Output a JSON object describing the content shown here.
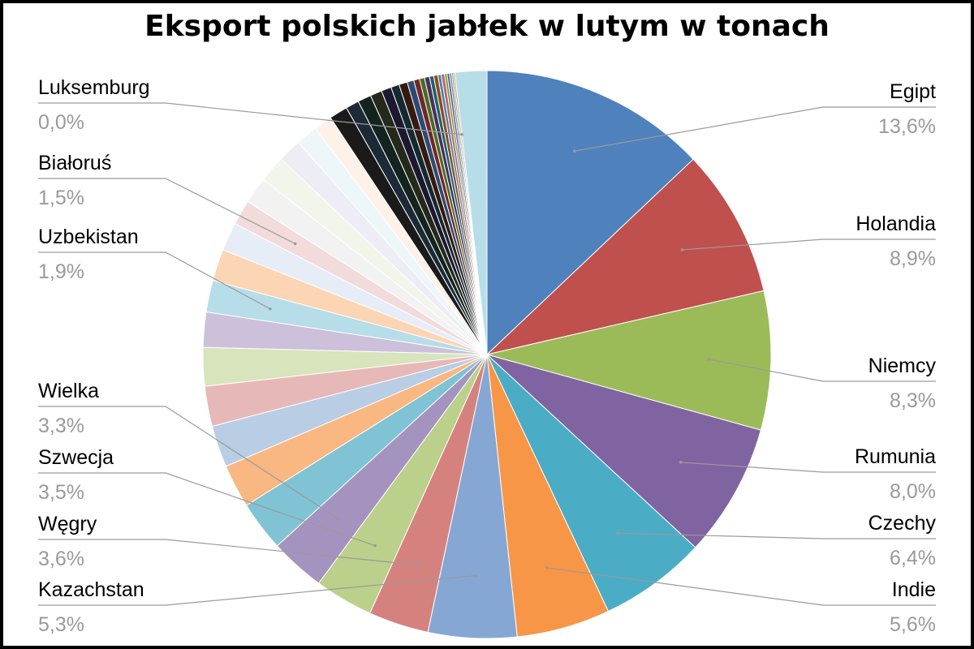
{
  "chart_data": {
    "type": "pie",
    "title": "Eksport polskich jabłek w lutym w tonach",
    "labeled_slices": [
      {
        "name": "Egipt",
        "value_label": "13,6%",
        "value": 13.6,
        "color": "#4F81BD"
      },
      {
        "name": "Holandia",
        "value_label": "8,9%",
        "value": 8.9,
        "color": "#C0504D"
      },
      {
        "name": "Niemcy",
        "value_label": "8,3%",
        "value": 8.3,
        "color": "#9BBB59"
      },
      {
        "name": "Rumunia",
        "value_label": "8,0%",
        "value": 8.0,
        "color": "#8064A2"
      },
      {
        "name": "Czechy",
        "value_label": "6,4%",
        "value": 6.4,
        "color": "#4BACC6"
      },
      {
        "name": "Indie",
        "value_label": "5,6%",
        "value": 5.6,
        "color": "#F79646"
      },
      {
        "name": "Kazachstan",
        "value_label": "5,3%",
        "value": 5.3,
        "color": "#86A7D4"
      },
      {
        "name": "Węgry",
        "value_label": "3,6%",
        "value": 3.6,
        "color": "#D5827F"
      },
      {
        "name": "Szwecja",
        "value_label": "3,5%",
        "value": 3.5,
        "color": "#BBD08A"
      },
      {
        "name": "Wielka",
        "value_label": "3,3%",
        "value": 3.3,
        "color": "#A593BF"
      },
      {
        "name": "Uzbekistan",
        "value_label": "1,9%",
        "value": 1.9,
        "color": "#B6DDE8"
      },
      {
        "name": "Białoruś",
        "value_label": "1,5%",
        "value": 1.5,
        "color": "#F2DBDB"
      },
      {
        "name": "Luksemburg",
        "value_label": "0,0%",
        "value": 0.0,
        "color": "#C0C0C0"
      }
    ],
    "unlabeled_slices": [
      {
        "value": 3.0,
        "color": "#7FC3D5"
      },
      {
        "value": 2.6,
        "color": "#F9B782"
      },
      {
        "value": 2.5,
        "color": "#B9CDE5"
      },
      {
        "value": 2.4,
        "color": "#E6B9B8"
      },
      {
        "value": 2.3,
        "color": "#D7E4BC"
      },
      {
        "value": 2.1,
        "color": "#CCC0DA"
      },
      {
        "value": 1.9,
        "color": "#B7DEE8"
      },
      {
        "value": 1.9,
        "color": "#FCD5B4"
      },
      {
        "value": 1.7,
        "color": "#E6EDF6"
      },
      {
        "value": 1.6,
        "color": "#F2F2F2"
      },
      {
        "value": 1.6,
        "color": "#F2F5EA"
      },
      {
        "value": 1.4,
        "color": "#EEECF4"
      },
      {
        "value": 1.3,
        "color": "#EDF6F9"
      },
      {
        "value": 1.1,
        "color": "#FDF1E8"
      },
      {
        "value": 1.1,
        "color": "#1A1A1A"
      },
      {
        "value": 0.8,
        "color": "#1B2A36"
      },
      {
        "value": 0.8,
        "color": "#12241D"
      },
      {
        "value": 0.7,
        "color": "#24291A"
      },
      {
        "value": 0.6,
        "color": "#1C1830"
      },
      {
        "value": 0.5,
        "color": "#142A30"
      },
      {
        "value": 0.5,
        "color": "#331C0E"
      },
      {
        "value": 0.4,
        "color": "#2E4A74"
      },
      {
        "value": 0.35,
        "color": "#6E2A28"
      },
      {
        "value": 0.3,
        "color": "#4E6A22"
      },
      {
        "value": 0.3,
        "color": "#44345E"
      },
      {
        "value": 0.25,
        "color": "#22606E"
      },
      {
        "value": 0.25,
        "color": "#8A4E1A"
      },
      {
        "value": 0.2,
        "color": "#5A7DB0"
      },
      {
        "value": 0.2,
        "color": "#B06A66"
      },
      {
        "value": 0.15,
        "color": "#7A9A44"
      },
      {
        "value": 0.15,
        "color": "#6E5892"
      },
      {
        "value": 0.12,
        "color": "#3E94AA"
      },
      {
        "value": 0.1,
        "color": "#D27E36"
      },
      {
        "value": 0.1,
        "color": "#A0A0A0"
      }
    ]
  }
}
